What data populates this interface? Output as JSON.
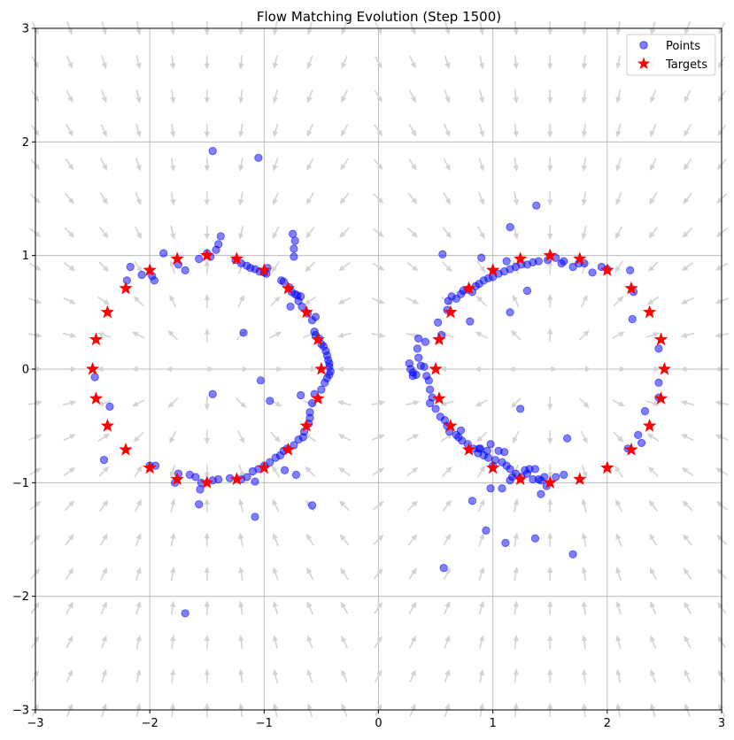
{
  "chart_data": {
    "type": "scatter",
    "title": "Flow Matching Evolution (Step 1500)",
    "xlabel": "",
    "ylabel": "",
    "xlim": [
      -3,
      3
    ],
    "ylim": [
      -3,
      3
    ],
    "xticks": [
      -3,
      -2,
      -1,
      0,
      1,
      2,
      3
    ],
    "yticks": [
      -3,
      -2,
      -1,
      0,
      1,
      2,
      3
    ],
    "xtick_labels": [
      "−3",
      "−2",
      "−1",
      "0",
      "1",
      "2",
      "3"
    ],
    "ytick_labels": [
      "−3",
      "−2",
      "−1",
      "0",
      "1",
      "2",
      "3"
    ],
    "grid": true,
    "legend_position": "top-right",
    "colors": {
      "points": "#0000ff",
      "targets": "#ff0000",
      "arrows": "#d3d3d3",
      "grid": "#b0b0b0"
    },
    "vector_field": {
      "description_free": true,
      "grid_x": [
        -3.0,
        -2.7,
        -2.4,
        -2.1,
        -1.8,
        -1.5,
        -1.2,
        -0.9,
        -0.6,
        -0.3,
        0.0,
        0.3,
        0.6,
        0.9,
        1.2,
        1.5,
        1.8,
        2.1,
        2.4,
        2.7,
        3.0
      ],
      "grid_y": [
        -3.0,
        -2.7,
        -2.4,
        -2.1,
        -1.8,
        -1.5,
        -1.2,
        -0.9,
        -0.6,
        -0.3,
        0.0,
        0.3,
        0.6,
        0.9,
        1.2,
        1.5,
        1.8,
        2.1,
        2.4,
        2.7,
        3.0
      ],
      "left_center": [
        -1.5,
        0
      ],
      "right_center": [
        1.5,
        0
      ],
      "radius": 1.0
    },
    "series": [
      {
        "name": "Points",
        "marker": "circle",
        "points": [
          [
            -1.45,
            1.92
          ],
          [
            -1.05,
            1.86
          ],
          [
            -1.38,
            1.17
          ],
          [
            -1.4,
            1.1
          ],
          [
            -1.42,
            1.05
          ],
          [
            -1.5,
            1.02
          ],
          [
            -1.47,
            0.99
          ],
          [
            -1.57,
            0.97
          ],
          [
            -1.25,
            0.96
          ],
          [
            -1.2,
            0.93
          ],
          [
            -1.15,
            0.91
          ],
          [
            -1.12,
            0.89
          ],
          [
            -1.08,
            0.88
          ],
          [
            -1.04,
            0.86
          ],
          [
            -1.0,
            0.85
          ],
          [
            -0.98,
            0.84
          ],
          [
            -0.97,
            0.89
          ],
          [
            -0.75,
            1.19
          ],
          [
            -0.73,
            1.13
          ],
          [
            -0.74,
            1.06
          ],
          [
            -0.74,
            0.99
          ],
          [
            -0.85,
            0.78
          ],
          [
            -0.83,
            0.77
          ],
          [
            -0.78,
            0.72
          ],
          [
            -0.76,
            0.68
          ],
          [
            -0.73,
            0.66
          ],
          [
            -0.71,
            0.65
          ],
          [
            -0.68,
            0.64
          ],
          [
            -0.7,
            0.6
          ],
          [
            -0.67,
            0.55
          ],
          [
            -0.77,
            0.55
          ],
          [
            -0.62,
            0.49
          ],
          [
            -0.55,
            0.46
          ],
          [
            -0.58,
            0.43
          ],
          [
            -0.56,
            0.33
          ],
          [
            -0.55,
            0.3
          ],
          [
            -0.52,
            0.27
          ],
          [
            -0.5,
            0.22
          ],
          [
            -0.48,
            0.2
          ],
          [
            -0.46,
            0.16
          ],
          [
            -0.45,
            0.12
          ],
          [
            -0.44,
            0.08
          ],
          [
            -0.43,
            0.05
          ],
          [
            -0.43,
            0.02
          ],
          [
            -0.42,
            -0.02
          ],
          [
            -0.43,
            -0.05
          ],
          [
            -0.45,
            -0.08
          ],
          [
            -0.47,
            -0.12
          ],
          [
            -0.5,
            -0.18
          ],
          [
            -0.56,
            -0.22
          ],
          [
            -0.58,
            -0.3
          ],
          [
            -0.6,
            -0.38
          ],
          [
            -0.6,
            -0.43
          ],
          [
            -0.61,
            -0.48
          ],
          [
            -0.65,
            -0.55
          ],
          [
            -0.66,
            -0.6
          ],
          [
            -0.7,
            -0.62
          ],
          [
            -0.74,
            -0.67
          ],
          [
            -0.8,
            -0.7
          ],
          [
            -0.83,
            -0.72
          ],
          [
            -0.86,
            -0.76
          ],
          [
            -0.9,
            -0.78
          ],
          [
            -0.95,
            -0.82
          ],
          [
            -1.0,
            -0.85
          ],
          [
            -1.05,
            -0.88
          ],
          [
            -1.1,
            -0.9
          ],
          [
            -1.15,
            -0.95
          ],
          [
            -1.2,
            -0.97
          ],
          [
            -1.3,
            -0.96
          ],
          [
            -1.4,
            -0.97
          ],
          [
            -1.45,
            -0.98
          ],
          [
            -1.55,
            -1.0
          ],
          [
            -1.6,
            -0.95
          ],
          [
            -1.65,
            -0.93
          ],
          [
            -1.75,
            -0.92
          ],
          [
            -1.78,
            -1.0
          ],
          [
            -1.95,
            -0.85
          ],
          [
            -2.0,
            -0.85
          ],
          [
            -2.4,
            -0.8
          ],
          [
            -2.35,
            -0.33
          ],
          [
            -2.48,
            -0.07
          ],
          [
            -1.96,
            0.78
          ],
          [
            -1.98,
            0.82
          ],
          [
            -2.07,
            0.83
          ],
          [
            -2.2,
            0.78
          ],
          [
            -2.17,
            0.9
          ],
          [
            -1.88,
            1.02
          ],
          [
            -1.75,
            0.92
          ],
          [
            -1.69,
            0.87
          ],
          [
            -1.03,
            -0.1
          ],
          [
            -0.95,
            -0.28
          ],
          [
            -1.45,
            -0.22
          ],
          [
            -1.18,
            0.32
          ],
          [
            -0.68,
            -0.23
          ],
          [
            -0.72,
            -0.93
          ],
          [
            -0.82,
            -0.89
          ],
          [
            -1.08,
            -0.99
          ],
          [
            -1.08,
            -1.3
          ],
          [
            -1.56,
            -1.06
          ],
          [
            -1.57,
            -1.19
          ],
          [
            -0.58,
            -1.2
          ],
          [
            -1.69,
            -2.15
          ],
          [
            0.27,
            0.05
          ],
          [
            0.28,
            0.0
          ],
          [
            0.3,
            -0.03
          ],
          [
            0.3,
            -0.06
          ],
          [
            0.33,
            -0.05
          ],
          [
            0.35,
            0.1
          ],
          [
            0.37,
            0.03
          ],
          [
            0.4,
            0.02
          ],
          [
            0.42,
            -0.06
          ],
          [
            0.44,
            -0.1
          ],
          [
            0.35,
            0.27
          ],
          [
            0.34,
            0.18
          ],
          [
            0.41,
            0.24
          ],
          [
            0.45,
            -0.18
          ],
          [
            0.47,
            -0.25
          ],
          [
            0.45,
            -0.3
          ],
          [
            0.5,
            -0.35
          ],
          [
            0.54,
            -0.42
          ],
          [
            0.58,
            -0.45
          ],
          [
            0.6,
            -0.5
          ],
          [
            0.62,
            -0.55
          ],
          [
            0.68,
            -0.58
          ],
          [
            0.73,
            -0.63
          ],
          [
            0.78,
            -0.66
          ],
          [
            0.83,
            -0.7
          ],
          [
            0.87,
            -0.74
          ],
          [
            0.92,
            -0.76
          ],
          [
            0.96,
            -0.78
          ],
          [
            1.02,
            -0.8
          ],
          [
            1.08,
            -0.82
          ],
          [
            1.12,
            -0.85
          ],
          [
            1.15,
            -0.88
          ],
          [
            1.2,
            -0.92
          ],
          [
            1.25,
            -0.95
          ],
          [
            1.3,
            -0.92
          ],
          [
            1.35,
            -0.97
          ],
          [
            1.4,
            -0.97
          ],
          [
            1.45,
            -0.95
          ],
          [
            1.55,
            -0.95
          ],
          [
            1.62,
            -0.93
          ],
          [
            1.17,
            -0.95
          ],
          [
            1.15,
            -0.98
          ],
          [
            1.28,
            -0.89
          ],
          [
            1.32,
            -0.88
          ],
          [
            1.37,
            -0.88
          ],
          [
            1.42,
            -0.98
          ],
          [
            1.47,
            -1.03
          ],
          [
            1.42,
            -1.1
          ],
          [
            1.08,
            -1.05
          ],
          [
            0.98,
            -1.05
          ],
          [
            0.82,
            -1.16
          ],
          [
            0.94,
            -1.42
          ],
          [
            1.11,
            -1.53
          ],
          [
            1.37,
            -1.49
          ],
          [
            1.7,
            -1.63
          ],
          [
            0.57,
            -1.75
          ],
          [
            1.65,
            -0.61
          ],
          [
            1.24,
            -0.35
          ],
          [
            0.72,
            -0.54
          ],
          [
            0.7,
            -0.6
          ],
          [
            0.88,
            -0.7
          ],
          [
            0.89,
            -0.7
          ],
          [
            0.95,
            -0.72
          ],
          [
            0.98,
            -0.66
          ],
          [
            1.05,
            -0.72
          ],
          [
            1.1,
            -0.73
          ],
          [
            1.0,
            -0.85
          ],
          [
            0.52,
            0.41
          ],
          [
            0.55,
            0.3
          ],
          [
            0.6,
            0.52
          ],
          [
            0.61,
            0.6
          ],
          [
            0.64,
            0.64
          ],
          [
            0.68,
            0.62
          ],
          [
            0.72,
            0.66
          ],
          [
            0.74,
            0.69
          ],
          [
            0.78,
            0.7
          ],
          [
            0.82,
            0.68
          ],
          [
            0.85,
            0.73
          ],
          [
            0.88,
            0.75
          ],
          [
            0.92,
            0.78
          ],
          [
            0.96,
            0.8
          ],
          [
            1.0,
            0.81
          ],
          [
            1.05,
            0.84
          ],
          [
            1.1,
            0.86
          ],
          [
            1.15,
            0.88
          ],
          [
            1.2,
            0.9
          ],
          [
            1.25,
            0.92
          ],
          [
            1.3,
            0.92
          ],
          [
            1.35,
            0.94
          ],
          [
            1.4,
            0.95
          ],
          [
            1.48,
            0.96
          ],
          [
            1.55,
            0.98
          ],
          [
            1.62,
            0.95
          ],
          [
            1.7,
            0.9
          ],
          [
            1.8,
            0.93
          ],
          [
            1.87,
            0.85
          ],
          [
            1.95,
            0.9
          ],
          [
            2.0,
            0.88
          ],
          [
            2.2,
            0.87
          ],
          [
            2.23,
            0.68
          ],
          [
            2.22,
            0.44
          ],
          [
            2.45,
            0.18
          ],
          [
            2.45,
            -0.12
          ],
          [
            2.45,
            -0.25
          ],
          [
            2.33,
            -0.37
          ],
          [
            2.27,
            -0.58
          ],
          [
            2.3,
            -0.65
          ],
          [
            2.18,
            -0.7
          ],
          [
            0.56,
            1.01
          ],
          [
            1.15,
            1.25
          ],
          [
            1.38,
            1.44
          ],
          [
            1.15,
            0.5
          ],
          [
            0.8,
            0.42
          ],
          [
            0.9,
            0.98
          ],
          [
            1.12,
            0.95
          ],
          [
            1.3,
            0.69
          ],
          [
            1.6,
            0.93
          ],
          [
            1.75,
            0.93
          ]
        ]
      },
      {
        "name": "Targets",
        "marker": "star",
        "points": [
          [
            -0.5,
            0.0
          ],
          [
            -0.53,
            0.26
          ],
          [
            -0.63,
            0.5
          ],
          [
            -0.79,
            0.71
          ],
          [
            -1.0,
            0.87
          ],
          [
            -1.24,
            0.97
          ],
          [
            -1.5,
            1.0
          ],
          [
            -1.76,
            0.97
          ],
          [
            -2.0,
            0.87
          ],
          [
            -2.21,
            0.71
          ],
          [
            -2.37,
            0.5
          ],
          [
            -2.47,
            0.26
          ],
          [
            -2.5,
            0.0
          ],
          [
            -2.47,
            -0.26
          ],
          [
            -2.37,
            -0.5
          ],
          [
            -2.21,
            -0.71
          ],
          [
            -2.0,
            -0.87
          ],
          [
            -1.76,
            -0.97
          ],
          [
            -1.5,
            -1.0
          ],
          [
            -1.24,
            -0.97
          ],
          [
            -1.0,
            -0.87
          ],
          [
            -0.79,
            -0.71
          ],
          [
            -0.63,
            -0.5
          ],
          [
            -0.53,
            -0.26
          ],
          [
            2.5,
            0.0
          ],
          [
            2.47,
            0.26
          ],
          [
            2.37,
            0.5
          ],
          [
            2.21,
            0.71
          ],
          [
            2.0,
            0.87
          ],
          [
            1.76,
            0.97
          ],
          [
            1.5,
            1.0
          ],
          [
            1.24,
            0.97
          ],
          [
            1.0,
            0.87
          ],
          [
            0.79,
            0.71
          ],
          [
            0.63,
            0.5
          ],
          [
            0.53,
            0.26
          ],
          [
            0.5,
            0.0
          ],
          [
            0.53,
            -0.26
          ],
          [
            0.63,
            -0.5
          ],
          [
            0.79,
            -0.71
          ],
          [
            1.0,
            -0.87
          ],
          [
            1.24,
            -0.97
          ],
          [
            1.5,
            -1.0
          ],
          [
            1.76,
            -0.97
          ],
          [
            2.0,
            -0.87
          ],
          [
            2.21,
            -0.71
          ],
          [
            2.37,
            -0.5
          ],
          [
            2.47,
            -0.26
          ]
        ]
      }
    ]
  }
}
